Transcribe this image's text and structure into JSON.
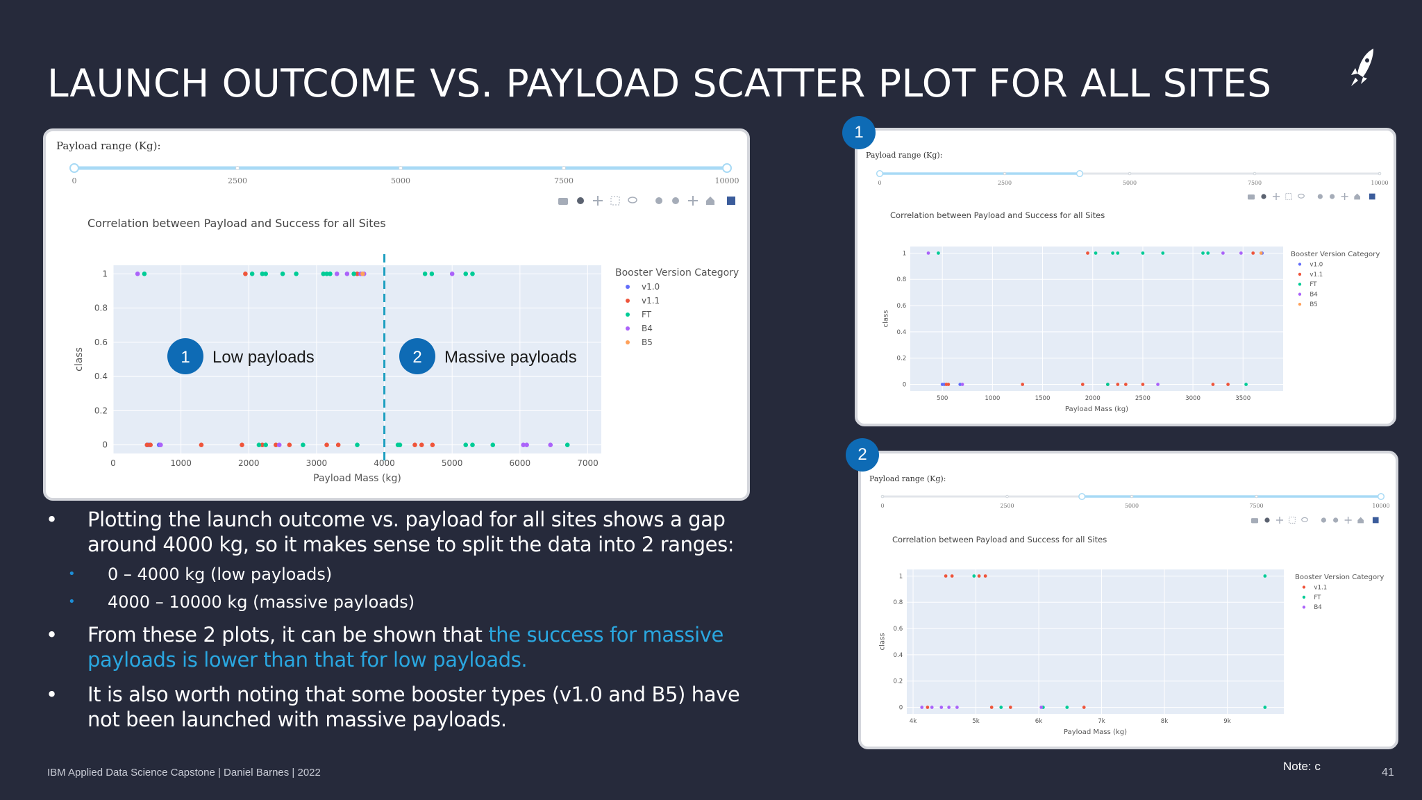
{
  "slide": {
    "title": "LAUNCH OUTCOME VS. PAYLOAD SCATTER PLOT FOR ALL SITES",
    "footer": "IBM Applied Data Science Capstone  |  Daniel Barnes  |  2022",
    "note": "Note: c",
    "page_number": "41"
  },
  "icons": [
    "rocket-icon",
    "camera-icon",
    "zoom-icon",
    "pan-icon",
    "box-select-icon",
    "lasso-icon",
    "zoom-in-icon",
    "zoom-out-icon",
    "autoscale-icon",
    "reset-axes-icon",
    "plotly-logo-icon"
  ],
  "bullets": {
    "b1": "Plotting the launch outcome vs. payload for all sites shows a gap around 4000 kg, so it makes sense to split the data into 2 ranges:",
    "s1": "0 – 4000 kg (low payloads)",
    "s2": "4000 – 10000 kg (massive payloads)",
    "b2_prefix": "From these 2 plots, it can be shown that ",
    "b2_highlight": "the success for massive payloads is lower than that for low payloads.",
    "b3": "It is also worth noting that some booster types (v1.0 and B5) have not been launched with massive payloads."
  },
  "badges": {
    "one": "1",
    "two": "2"
  },
  "colors": {
    "background": "#262a3b",
    "plot_bg": "#e5ecf6",
    "accent_blue": "#2aa7e0",
    "badge_blue": "#0e6bb5",
    "v1.0": "#636efa",
    "v1.1": "#ef553b",
    "FT": "#00cc96",
    "B4": "#ab63fa",
    "B5": "#ffa15a"
  },
  "chart_data": [
    {
      "id": "main",
      "type": "scatter",
      "range_label": "Payload range (Kg):",
      "slider_ticks": [
        "0",
        "2500",
        "5000",
        "7500",
        "10000"
      ],
      "slider_value": [
        0,
        10000
      ],
      "title": "Correlation between Payload and Success for all Sites",
      "xlabel": "Payload Mass (kg)",
      "ylabel": "class",
      "xlim": [
        0,
        7200
      ],
      "ylim": [
        -0.05,
        1.05
      ],
      "x_ticks": [
        0,
        1000,
        2000,
        3000,
        4000,
        5000,
        6000,
        7000
      ],
      "x_tick_labels": [
        "0",
        "1000",
        "2000",
        "3000",
        "4000",
        "5000",
        "6000",
        "7000"
      ],
      "y_ticks": [
        0,
        0.2,
        0.4,
        0.6,
        0.8,
        1
      ],
      "y_tick_labels": [
        "0",
        "0.2",
        "0.4",
        "0.6",
        "0.8",
        "1"
      ],
      "legend_title": "Booster Version Category",
      "legend": [
        "v1.0",
        "v1.1",
        "FT",
        "B4",
        "B5"
      ],
      "annotations": [
        {
          "badge": "1",
          "text": "Low payloads"
        },
        {
          "badge": "2",
          "text": "Massive payloads"
        }
      ],
      "split_line_x": 4000,
      "series": [
        {
          "name": "v1.0",
          "points": [
            [
              500,
              0
            ],
            [
              525,
              0
            ],
            [
              677,
              0
            ]
          ]
        },
        {
          "name": "v1.1",
          "points": [
            [
              500,
              0
            ],
            [
              550,
              0
            ],
            [
              1300,
              0
            ],
            [
              1900,
              0
            ],
            [
              2200,
              0
            ],
            [
              2400,
              0
            ],
            [
              2600,
              0
            ],
            [
              3150,
              0
            ],
            [
              3320,
              0
            ],
            [
              4450,
              0
            ],
            [
              4550,
              0
            ],
            [
              4710,
              0
            ],
            [
              1950,
              1
            ],
            [
              3600,
              1
            ]
          ]
        },
        {
          "name": "FT",
          "points": [
            [
              2150,
              0
            ],
            [
              2250,
              0
            ],
            [
              2800,
              0
            ],
            [
              3600,
              0
            ],
            [
              4200,
              0
            ],
            [
              4230,
              0
            ],
            [
              5200,
              0
            ],
            [
              5300,
              0
            ],
            [
              5600,
              0
            ],
            [
              6700,
              0
            ],
            [
              460,
              1
            ],
            [
              2050,
              1
            ],
            [
              2200,
              1
            ],
            [
              2250,
              1
            ],
            [
              2500,
              1
            ],
            [
              2700,
              1
            ],
            [
              3100,
              1
            ],
            [
              3150,
              1
            ],
            [
              3200,
              1
            ],
            [
              3550,
              1
            ],
            [
              4600,
              1
            ],
            [
              4700,
              1
            ],
            [
              5200,
              1
            ],
            [
              5300,
              1
            ]
          ]
        },
        {
          "name": "B4",
          "points": [
            [
              700,
              0
            ],
            [
              2450,
              0
            ],
            [
              6050,
              0
            ],
            [
              6100,
              0
            ],
            [
              6450,
              0
            ],
            [
              360,
              1
            ],
            [
              3300,
              1
            ],
            [
              3450,
              1
            ],
            [
              3650,
              1
            ],
            [
              3700,
              1
            ],
            [
              5000,
              1
            ]
          ]
        },
        {
          "name": "B5",
          "points": [
            [
              3680,
              1
            ]
          ]
        }
      ]
    },
    {
      "id": "low",
      "type": "scatter",
      "range_label": "Payload range (Kg):",
      "slider_ticks": [
        "0",
        "2500",
        "5000",
        "7500",
        "10000"
      ],
      "slider_value": [
        0,
        4000
      ],
      "title": "Correlation between Payload and Success for all Sites",
      "xlabel": "Payload Mass (kg)",
      "ylabel": "class",
      "xlim": [
        180,
        3900
      ],
      "ylim": [
        -0.05,
        1.05
      ],
      "x_ticks": [
        500,
        1000,
        1500,
        2000,
        2500,
        3000,
        3500
      ],
      "x_tick_labels": [
        "500",
        "1000",
        "1500",
        "2000",
        "2500",
        "3000",
        "3500"
      ],
      "y_ticks": [
        0,
        0.2,
        0.4,
        0.6,
        0.8,
        1
      ],
      "y_tick_labels": [
        "0",
        "0.2",
        "0.4",
        "0.6",
        "0.8",
        "1"
      ],
      "legend_title": "Booster Version Category",
      "legend": [
        "v1.0",
        "v1.1",
        "FT",
        "B4",
        "B5"
      ],
      "series": [
        {
          "name": "v1.0",
          "points": [
            [
              500,
              0
            ],
            [
              520,
              0
            ],
            [
              677,
              0
            ],
            [
              3690,
              1
            ]
          ]
        },
        {
          "name": "v1.1",
          "points": [
            [
              540,
              0
            ],
            [
              560,
              0
            ],
            [
              1300,
              0
            ],
            [
              1900,
              0
            ],
            [
              2150,
              0
            ],
            [
              2250,
              0
            ],
            [
              2330,
              0
            ],
            [
              2500,
              0
            ],
            [
              3200,
              0
            ],
            [
              3350,
              0
            ],
            [
              1950,
              1
            ],
            [
              3600,
              1
            ]
          ]
        },
        {
          "name": "FT",
          "points": [
            [
              2150,
              0
            ],
            [
              3530,
              0
            ],
            [
              460,
              1
            ],
            [
              2030,
              1
            ],
            [
              2200,
              1
            ],
            [
              2250,
              1
            ],
            [
              2500,
              1
            ],
            [
              2700,
              1
            ],
            [
              3100,
              1
            ],
            [
              3150,
              1
            ]
          ]
        },
        {
          "name": "B4",
          "points": [
            [
              700,
              0
            ],
            [
              2650,
              0
            ],
            [
              360,
              1
            ],
            [
              3300,
              1
            ],
            [
              3480,
              1
            ]
          ]
        },
        {
          "name": "B5",
          "points": [
            [
              3680,
              1
            ]
          ]
        }
      ]
    },
    {
      "id": "massive",
      "type": "scatter",
      "range_label": "Payload range (Kg):",
      "slider_ticks": [
        "0",
        "2500",
        "5000",
        "7500",
        "10000"
      ],
      "slider_value": [
        4000,
        10000
      ],
      "title": "Correlation between Payload and Success for all Sites",
      "xlabel": "Payload Mass (kg)",
      "ylabel": "class",
      "xlim": [
        3900,
        9900
      ],
      "ylim": [
        -0.05,
        1.05
      ],
      "x_ticks": [
        4000,
        5000,
        6000,
        7000,
        8000,
        9000
      ],
      "x_tick_labels": [
        "4k",
        "5k",
        "6k",
        "7k",
        "8k",
        "9k"
      ],
      "y_ticks": [
        0,
        0.2,
        0.4,
        0.6,
        0.8,
        1
      ],
      "y_tick_labels": [
        "0",
        "0.2",
        "0.4",
        "0.6",
        "0.8",
        "1"
      ],
      "legend_title": "Booster Version Category",
      "legend": [
        "v1.1",
        "FT",
        "B4"
      ],
      "series": [
        {
          "name": "v1.1",
          "points": [
            [
              4230,
              0
            ],
            [
              5250,
              0
            ],
            [
              5550,
              0
            ],
            [
              6720,
              0
            ],
            [
              4520,
              1
            ],
            [
              4620,
              1
            ],
            [
              5050,
              1
            ],
            [
              5150,
              1
            ]
          ]
        },
        {
          "name": "FT",
          "points": [
            [
              5400,
              0
            ],
            [
              6070,
              0
            ],
            [
              6450,
              0
            ],
            [
              4970,
              1
            ],
            [
              9600,
              0
            ],
            [
              9600,
              1
            ]
          ]
        },
        {
          "name": "B4",
          "points": [
            [
              4140,
              0
            ],
            [
              4300,
              0
            ],
            [
              4450,
              0
            ],
            [
              4570,
              0
            ],
            [
              4700,
              0
            ],
            [
              6040,
              0
            ]
          ]
        }
      ]
    }
  ]
}
